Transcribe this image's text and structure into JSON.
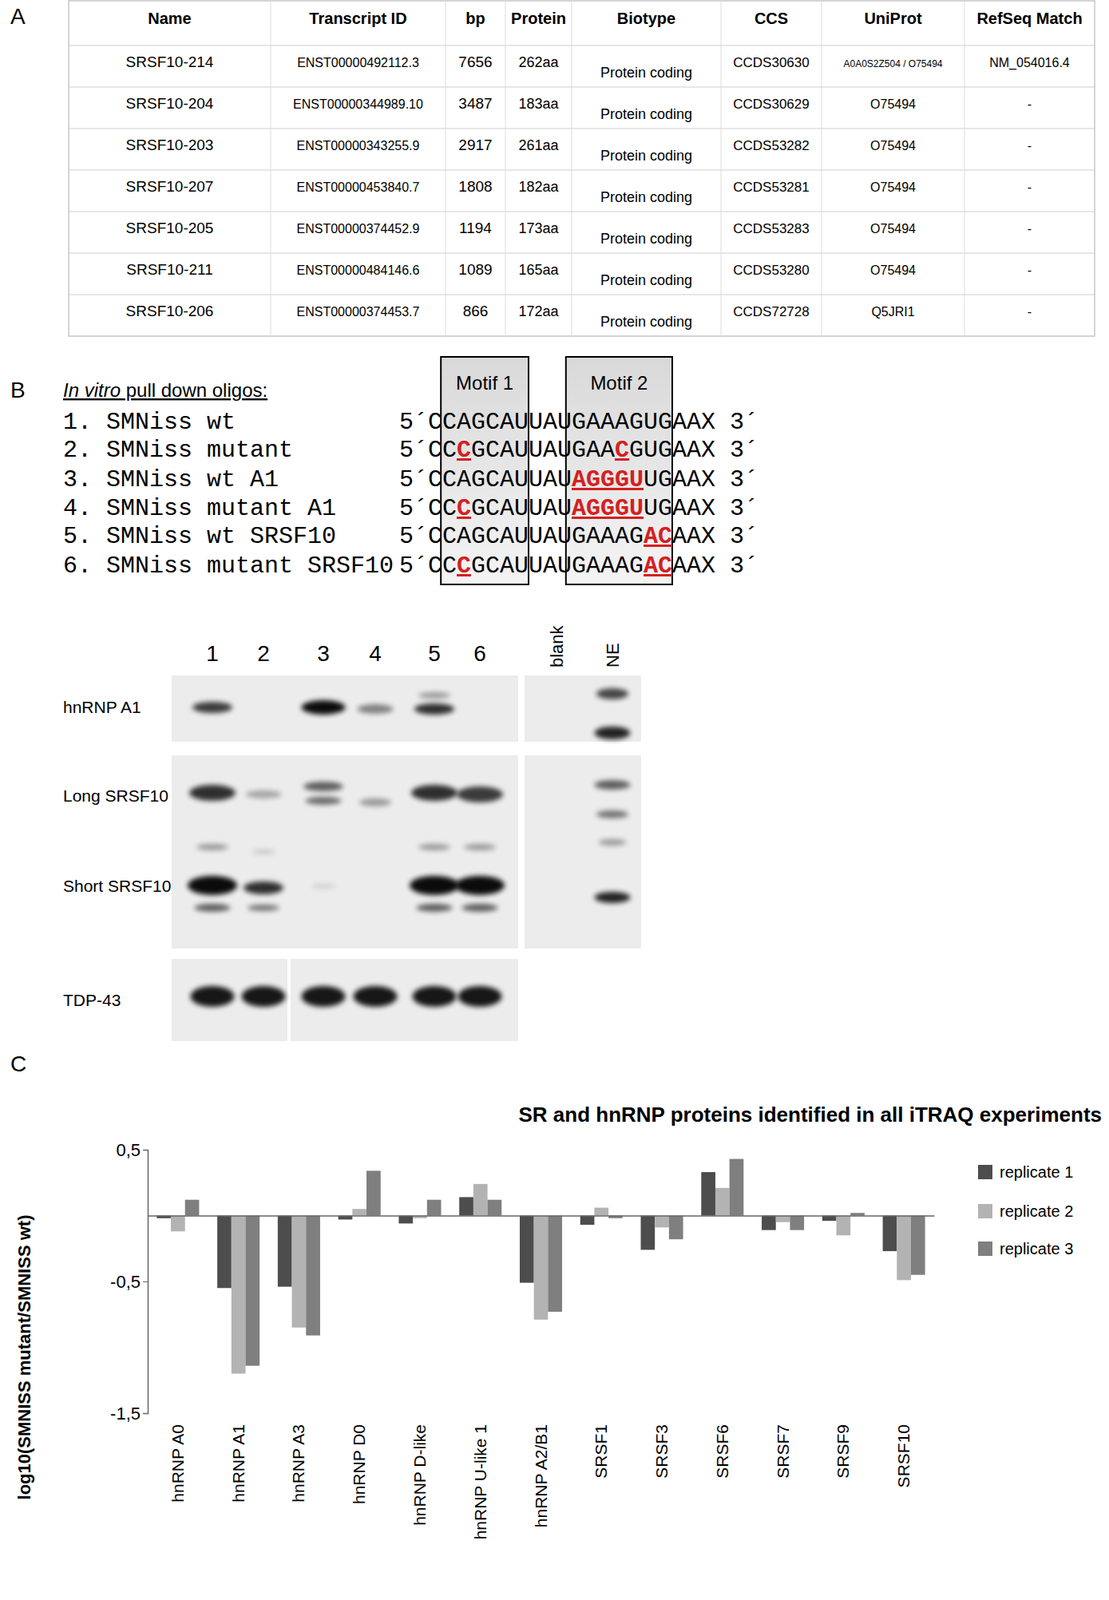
{
  "panel_labels": [
    "A",
    "B",
    "C"
  ],
  "table": {
    "columns": [
      "Name",
      "Transcript ID",
      "bp",
      "Protein",
      "Biotype",
      "CCS",
      "UniProt",
      "RefSeq Match"
    ],
    "rows": [
      [
        "SRSF10-214",
        "ENST00000492112.3",
        "7656",
        "262aa",
        "Protein coding",
        "CCDS30630",
        "A0A0S2Z504 / O75494",
        "NM_054016.4"
      ],
      [
        "SRSF10-204",
        "ENST00000344989.10",
        "3487",
        "183aa",
        "Protein coding",
        "CCDS30629",
        "O75494",
        "-"
      ],
      [
        "SRSF10-203",
        "ENST00000343255.9",
        "2917",
        "261aa",
        "Protein coding",
        "CCDS53282",
        "O75494",
        "-"
      ],
      [
        "SRSF10-207",
        "ENST00000453840.7",
        "1808",
        "182aa",
        "Protein coding",
        "CCDS53281",
        "O75494",
        "-"
      ],
      [
        "SRSF10-205",
        "ENST00000374452.9",
        "1194",
        "173aa",
        "Protein coding",
        "CCDS53283",
        "O75494",
        "-"
      ],
      [
        "SRSF10-211",
        "ENST00000484146.6",
        "1089",
        "165aa",
        "Protein coding",
        "CCDS53280",
        "O75494",
        "-"
      ],
      [
        "SRSF10-206",
        "ENST00000374453.7",
        "866",
        "172aa",
        "Protein coding",
        "CCDS72728",
        "Q5JRI1",
        "-"
      ]
    ]
  },
  "oligos": {
    "heading_italic": "In vitro",
    "heading": " pull down oligos:",
    "motifs": [
      "Motif 1",
      "Motif 2"
    ],
    "items": [
      {
        "number": "1.",
        "name": "SMNiss wt",
        "segments": [
          {
            "text": "5´CCAGCAUUAUGAAAGUGAAX 3´"
          }
        ]
      },
      {
        "number": "2.",
        "name": "SMNiss mutant",
        "segments": [
          {
            "text": "5´CC"
          },
          {
            "text": "C",
            "color": "#d42020"
          },
          {
            "text": "GCAUUAUGAA"
          },
          {
            "text": "C",
            "color": "#d42020"
          },
          {
            "text": "GUGAAX 3´"
          }
        ]
      },
      {
        "number": "3.",
        "name": "SMNiss wt A1",
        "segments": [
          {
            "text": "5´CCAGCAUUAU"
          },
          {
            "text": "AGGGU",
            "color": "#d42020"
          },
          {
            "text": "UGAAX 3´"
          }
        ]
      },
      {
        "number": "4.",
        "name": "SMNiss mutant A1",
        "segments": [
          {
            "text": "5´CC"
          },
          {
            "text": "C",
            "color": "#d42020"
          },
          {
            "text": "GCAUUAU"
          },
          {
            "text": "AGGGU",
            "color": "#d42020"
          },
          {
            "text": "UGAAX 3´"
          }
        ]
      },
      {
        "number": "5.",
        "name": "SMNiss wt SRSF10",
        "segments": [
          {
            "text": "5´CCAGCAUUAUGAAAG"
          },
          {
            "text": "AC",
            "color": "#d42020"
          },
          {
            "text": "AAX 3´"
          }
        ]
      },
      {
        "number": "6.",
        "name": "SMNiss mutant SRSF10",
        "segments": [
          {
            "text": "5´CC"
          },
          {
            "text": "C",
            "color": "#d42020"
          },
          {
            "text": "GCAUUAUGAAAG"
          },
          {
            "text": "AC",
            "color": "#d42020"
          },
          {
            "text": "AAX 3´"
          }
        ]
      }
    ]
  },
  "blot": {
    "lanes": [
      "1",
      "2",
      "3",
      "4",
      "5",
      "6"
    ],
    "extra_lanes": [
      "blank",
      "NE"
    ],
    "rows": [
      "hnRNP A1",
      "Long SRSF10",
      "Short SRSF10",
      "TDP-43"
    ]
  },
  "chart_data": {
    "type": "bar",
    "title": "SR and hnRNP proteins identified in all iTRAQ experiments",
    "y_label": "log10(SMNISS mutant/SMNISS wt)",
    "categories": [
      "hnRNP A0",
      "hnRNP A1",
      "hnRNP A3",
      "hnRNP D0",
      "hnRNP D-like",
      "hnRNP U-like 1",
      "hnRNP A2/B1",
      "SRSF1",
      "SRSF3",
      "SRSF6",
      "SRSF7",
      "SRSF9",
      "SRSF10"
    ],
    "series": [
      {
        "name": "replicate 1",
        "color": "#4d4d4d",
        "values": [
          -0.02,
          -0.55,
          -0.54,
          -0.03,
          -0.06,
          0.14,
          -0.51,
          -0.07,
          -0.26,
          0.33,
          -0.11,
          -0.04,
          -0.27
        ]
      },
      {
        "name": "replicate 2",
        "color": "#b3b3b3",
        "values": [
          -0.12,
          -1.2,
          -0.85,
          0.05,
          -0.02,
          0.24,
          -0.79,
          0.06,
          -0.09,
          0.21,
          -0.05,
          -0.15,
          -0.49
        ]
      },
      {
        "name": "replicate 3",
        "color": "#7f7f7f",
        "values": [
          0.12,
          -1.14,
          -0.91,
          0.34,
          0.12,
          0.12,
          -0.73,
          -0.02,
          -0.18,
          0.43,
          -0.11,
          0.02,
          -0.45
        ]
      }
    ],
    "ylim": [
      -1.5,
      0.5
    ],
    "yticks": [
      {
        "value": 0.5,
        "label": "0,5"
      },
      {
        "value": -0.5,
        "label": "-0,5"
      },
      {
        "value": -1.5,
        "label": "-1,5"
      }
    ],
    "legend": "right"
  }
}
